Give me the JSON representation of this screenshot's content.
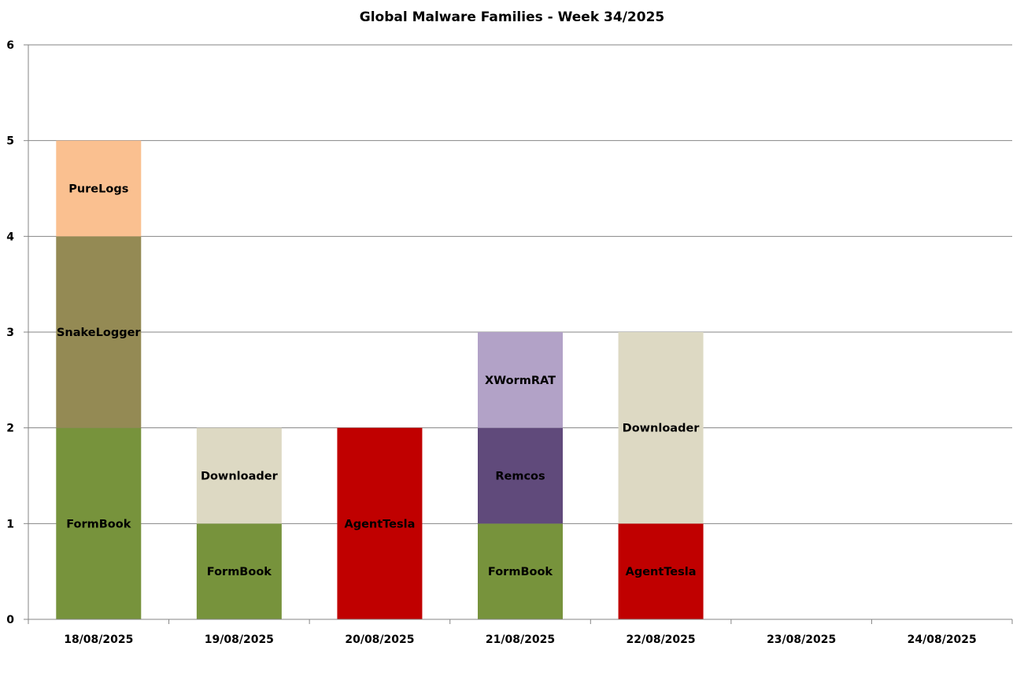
{
  "chart_data": {
    "type": "bar",
    "stacked": true,
    "title": "Global Malware Families - Week 34/2025",
    "xlabel": "",
    "ylabel": "",
    "ylim": [
      0,
      6
    ],
    "yticks": [
      0,
      1,
      2,
      3,
      4,
      5,
      6
    ],
    "grid": true,
    "legend": "none",
    "categories": [
      "18/08/2025",
      "19/08/2025",
      "20/08/2025",
      "21/08/2025",
      "22/08/2025",
      "23/08/2025",
      "24/08/2025"
    ],
    "stacks": [
      [
        {
          "label": "FormBook",
          "value": 2,
          "color": "#77933c"
        },
        {
          "label": "SnakeLogger",
          "value": 2,
          "color": "#948a54"
        },
        {
          "label": "PureLogs",
          "value": 1,
          "color": "#fac090"
        }
      ],
      [
        {
          "label": "FormBook",
          "value": 1,
          "color": "#77933c"
        },
        {
          "label": "Downloader",
          "value": 1,
          "color": "#ddd9c3"
        }
      ],
      [
        {
          "label": "AgentTesla",
          "value": 2,
          "color": "#c00000"
        }
      ],
      [
        {
          "label": "FormBook",
          "value": 1,
          "color": "#77933c"
        },
        {
          "label": "Remcos",
          "value": 1,
          "color": "#604a7b"
        },
        {
          "label": "XWormRAT",
          "value": 1,
          "color": "#b2a2c7"
        }
      ],
      [
        {
          "label": "AgentTesla",
          "value": 1,
          "color": "#c00000"
        },
        {
          "label": "Downloader",
          "value": 2,
          "color": "#ddd9c3"
        }
      ],
      [],
      []
    ]
  }
}
